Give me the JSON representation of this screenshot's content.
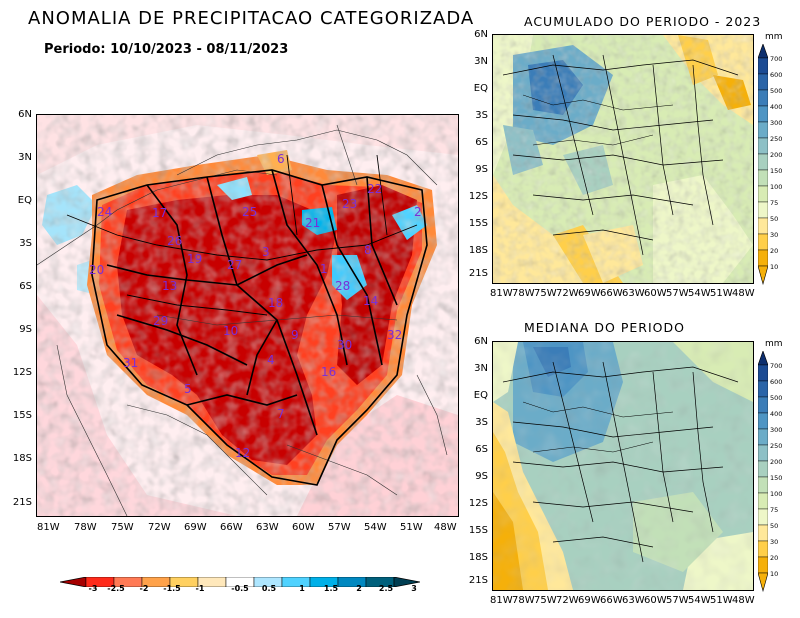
{
  "main": {
    "title": "ANOMALIA DE PRECIPITACAO CATEGORIZADA",
    "period": "Periodo: 10/10/2023 - 08/11/2023",
    "lat_ticks": [
      "6N",
      "3N",
      "EQ",
      "3S",
      "6S",
      "9S",
      "12S",
      "15S",
      "18S",
      "21S"
    ],
    "lon_ticks": [
      "81W",
      "78W",
      "75W",
      "72W",
      "69W",
      "66W",
      "63W",
      "60W",
      "57W",
      "54W",
      "51W",
      "48W"
    ],
    "basin_numbers": [
      "6",
      "22",
      "24",
      "17",
      "25",
      "21",
      "23",
      "2",
      "26",
      "20",
      "19",
      "27",
      "3",
      "1",
      "8",
      "13",
      "18",
      "28",
      "14",
      "29",
      "9",
      "32",
      "31",
      "30",
      "4",
      "16",
      "5",
      "7",
      "12",
      "10"
    ],
    "colors": {
      "strong_dry": "#c00000",
      "dry": "#ff4a22",
      "moderate_dry": "#ffa23a",
      "weak_dry": "#ffd76a",
      "neutral": "#ffffff",
      "wet": "#58d6ff",
      "strong_wet": "#00a4e0"
    }
  },
  "colorbar_h": {
    "labels": [
      "-3",
      "-2.5",
      "-2",
      "-1.5",
      "-1",
      "-0.5",
      "0.5",
      "1",
      "1.5",
      "2",
      "2.5",
      "3"
    ],
    "colors": [
      "#a60000",
      "#ff2a1a",
      "#ff7a55",
      "#ffa24a",
      "#ffd060",
      "#ffe8bb",
      "#ffffff",
      "#aee6ff",
      "#4fd2ff",
      "#00b0e8",
      "#0088c0",
      "#00607c",
      "#003e52"
    ]
  },
  "panel_accum": {
    "title": "ACUMULADO DO PERIODO - 2023",
    "lat_ticks": [
      "6N",
      "3N",
      "EQ",
      "3S",
      "6S",
      "9S",
      "12S",
      "15S",
      "18S",
      "21S"
    ],
    "lon_ticks": [
      "81W",
      "78W",
      "75W",
      "72W",
      "69W",
      "66W",
      "63W",
      "60W",
      "57W",
      "54W",
      "51W",
      "48W"
    ]
  },
  "panel_median": {
    "title": "MEDIANA DO PERIODO",
    "lat_ticks": [
      "6N",
      "3N",
      "EQ",
      "3S",
      "6S",
      "9S",
      "12S",
      "15S",
      "18S",
      "21S"
    ],
    "lon_ticks": [
      "81W",
      "78W",
      "75W",
      "72W",
      "69W",
      "66W",
      "63W",
      "60W",
      "57W",
      "54W",
      "51W",
      "48W"
    ]
  },
  "colorbar_v": {
    "unit": "mm",
    "labels": [
      "700",
      "600",
      "500",
      "400",
      "300",
      "250",
      "200",
      "150",
      "100",
      "75",
      "50",
      "30",
      "20",
      "10"
    ],
    "colors": [
      "#0d2f6e",
      "#1b4b94",
      "#2a64a8",
      "#3b7db8",
      "#4e95c4",
      "#6bacc8",
      "#8dc0c6",
      "#a8d0c0",
      "#c2e0b8",
      "#d8ecb4",
      "#eef7c8",
      "#ffe89a",
      "#ffcf4a",
      "#f5b00a"
    ]
  }
}
